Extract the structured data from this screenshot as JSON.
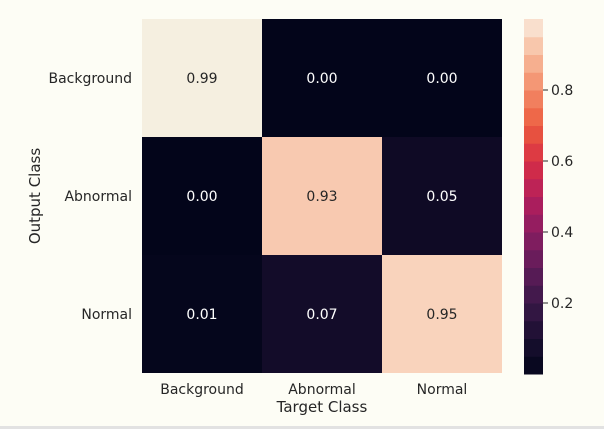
{
  "chart_data": {
    "type": "heatmap",
    "title": "",
    "xlabel": "Target Class",
    "ylabel": "Output Class",
    "x_categories": [
      "Background",
      "Abnormal",
      "Normal"
    ],
    "y_categories": [
      "Background",
      "Abnormal",
      "Normal"
    ],
    "values": [
      [
        0.99,
        0.0,
        0.0
      ],
      [
        0.0,
        0.93,
        0.05
      ],
      [
        0.01,
        0.07,
        0.95
      ]
    ],
    "value_labels": [
      [
        "0.99",
        "0.00",
        "0.00"
      ],
      [
        "0.00",
        "0.93",
        "0.05"
      ],
      [
        "0.01",
        "0.07",
        "0.95"
      ]
    ],
    "colorbar": {
      "range": [
        0.0,
        1.0
      ],
      "ticks": [
        0.2,
        0.4,
        0.6,
        0.8
      ],
      "tick_labels": [
        "0.2",
        "0.4",
        "0.6",
        "0.8"
      ],
      "colormap": "rocket"
    },
    "colors": {
      "background": "#fdfdf5",
      "text_dark_cell": "#ffffff",
      "text_light_cell": "#262626",
      "label_text": "#262626",
      "rule": "#e2e2e2"
    }
  }
}
